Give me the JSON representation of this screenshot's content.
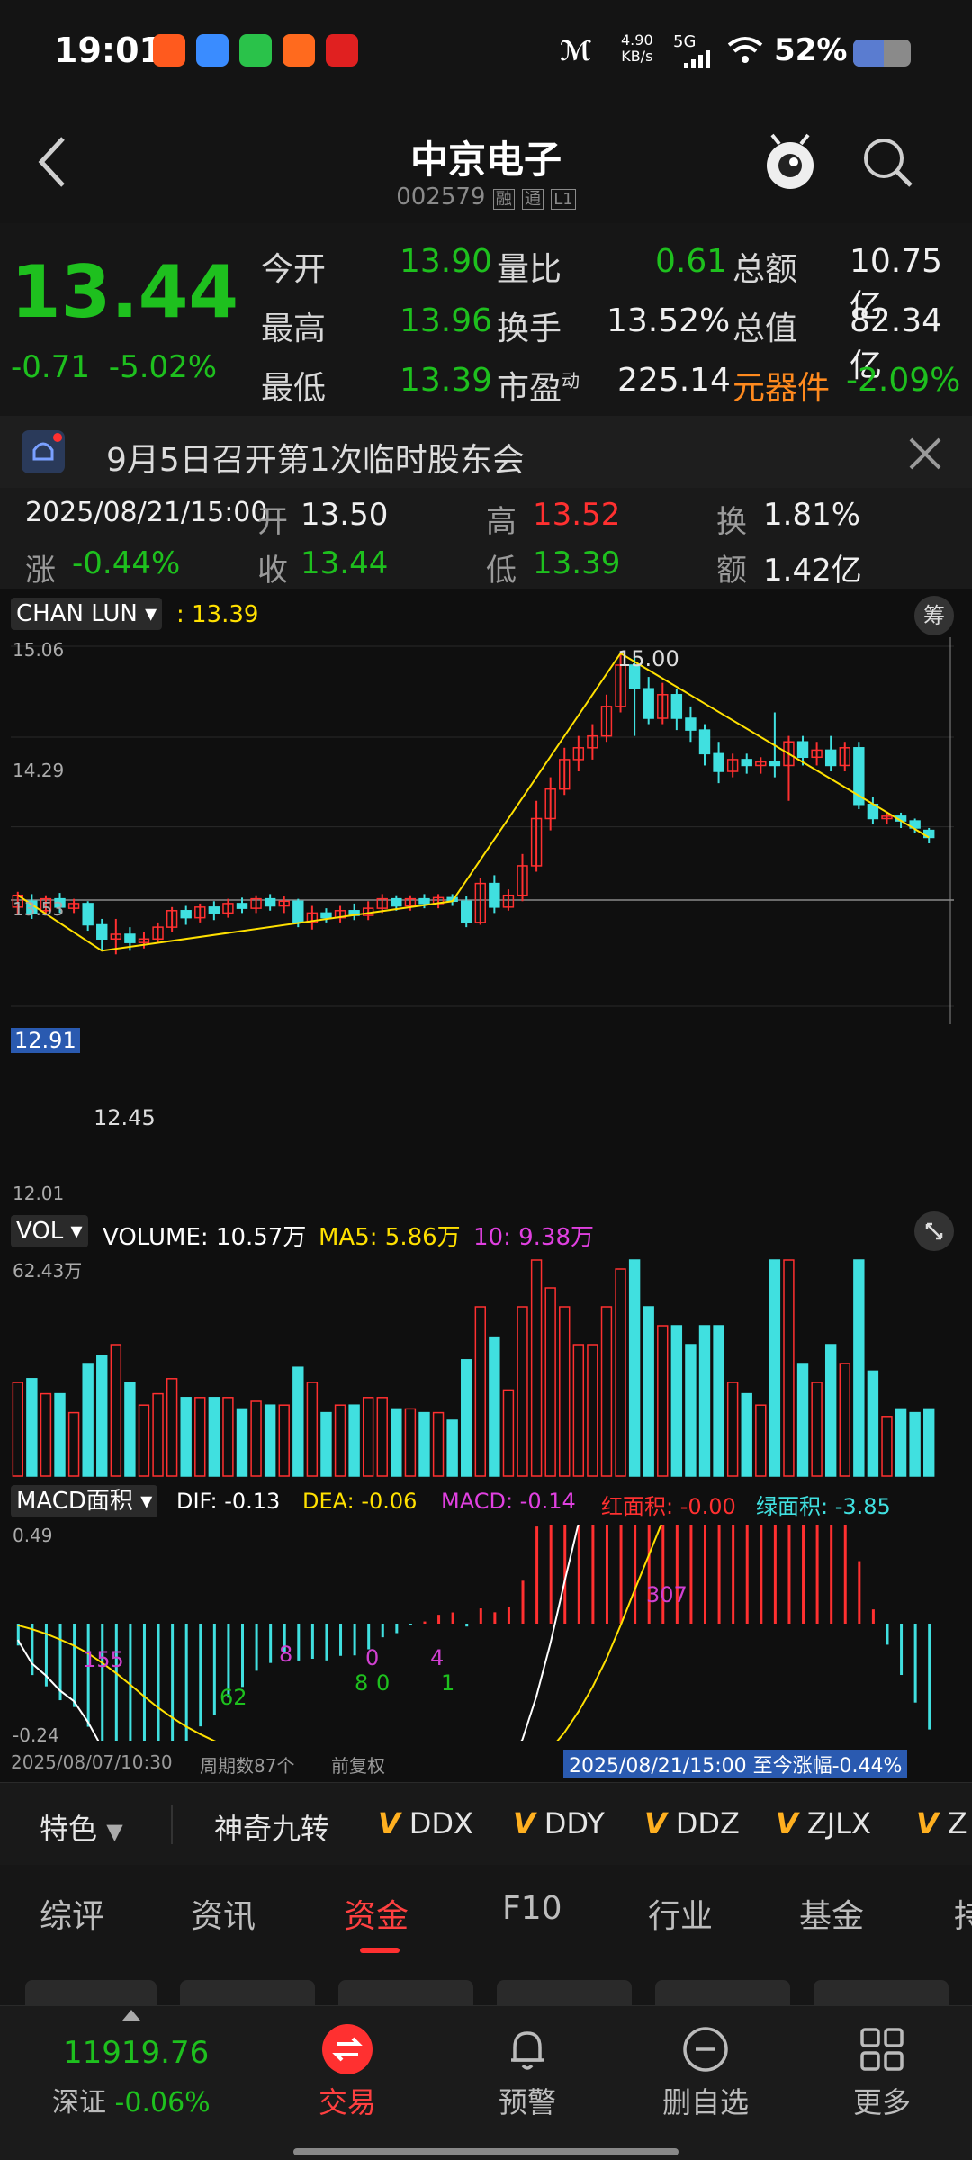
{
  "status": {
    "time": "19:01",
    "net_speed_top": "4.90",
    "net_speed_unit": "KB/s",
    "net_type": "5G",
    "battery": "52%",
    "notif_icons": [
      "notif-app-1-icon",
      "notif-app-2-icon",
      "wechat-icon",
      "taobao-icon",
      "toutiao-icon"
    ]
  },
  "header": {
    "title": "中京电子",
    "code": "002579",
    "badges": [
      "融",
      "通",
      "L1"
    ]
  },
  "quote": {
    "price": "13.44",
    "change": "-0.71",
    "change_pct": "-5.02%",
    "rows": [
      [
        {
          "label": "今开",
          "value": "13.90",
          "color": "green"
        },
        {
          "label": "量比",
          "value": "0.61",
          "color": "green"
        },
        {
          "label": "总额",
          "value": "10.75亿",
          "color": "white"
        }
      ],
      [
        {
          "label": "最高",
          "value": "13.96",
          "color": "green"
        },
        {
          "label": "换手",
          "value": "13.52%",
          "color": "white"
        },
        {
          "label": "总值",
          "value": "82.34亿",
          "color": "white"
        }
      ],
      [
        {
          "label": "最低",
          "value": "13.39",
          "color": "green"
        },
        {
          "label": "市盈",
          "value": "225.14",
          "color": "white"
        },
        {
          "label": "元器件",
          "value": "-2.09%",
          "color": "green"
        }
      ]
    ],
    "pe_sup": "动"
  },
  "notice": {
    "text": "9月5日召开第1次临时股东会"
  },
  "bar_info": {
    "datetime": "2025/08/21/15:00",
    "open_label": "开",
    "open": "13.50",
    "high_label": "高",
    "high": "13.52",
    "turn_label": "换",
    "turn": "1.81%",
    "chg_label": "涨",
    "chg": "-0.44%",
    "close_label": "收",
    "close": "13.44",
    "low_label": "低",
    "low": "13.39",
    "amt_label": "额",
    "amt": "1.42亿"
  },
  "chart": {
    "indicator_name": "CHAN LUN",
    "indicator_value": ": 13.39",
    "chip_label": "筹",
    "y_ticks": [
      "15.06",
      "14.29",
      "13.53",
      "12.01"
    ],
    "cross_price": "12.91",
    "peak_label": "15.00",
    "low_label": "12.45",
    "vol": {
      "name": "VOL",
      "volume": "VOLUME: 10.57万",
      "ma5": "MA5: 5.86万",
      "ma10": "10: 9.38万",
      "max_tick": "62.43万"
    },
    "macd": {
      "name": "MACD面积",
      "dif": "DIF: -0.13",
      "dea": "DEA: -0.06",
      "macd": "MACD: -0.14",
      "red_area": "红面积: -0.00",
      "green_area": "绿面积: -3.85",
      "y_top": "0.49",
      "y_bottom": "-0.24",
      "labels": [
        {
          "text": "155",
          "color": "#d040d0"
        },
        {
          "text": "62",
          "color": "#1ec01e"
        },
        {
          "text": "8",
          "color": "#d040d0"
        },
        {
          "text": "8",
          "color": "#1ec01e"
        },
        {
          "text": "0",
          "color": "#1ec01e"
        },
        {
          "text": "0",
          "color": "#d040d0"
        },
        {
          "text": "4",
          "color": "#d040d0"
        },
        {
          "text": "1",
          "color": "#1ec01e"
        },
        {
          "text": "307",
          "color": "#d040d0"
        }
      ]
    },
    "footer": {
      "start_date": "2025/08/07/10:30",
      "periods": "周期数87个",
      "adjust": "前复权",
      "range_info": "2025/08/21/15:00 至今涨幅-0.44%"
    }
  },
  "chart_data": {
    "type": "candlestick",
    "ylim": [
      12.01,
      15.06
    ],
    "candles": [
      [
        12.85,
        12.95,
        12.78,
        12.98
      ],
      [
        12.9,
        12.8,
        12.75,
        12.96
      ],
      [
        12.82,
        12.92,
        12.78,
        12.95
      ],
      [
        12.92,
        12.85,
        12.8,
        12.97
      ],
      [
        12.84,
        12.88,
        12.8,
        12.92
      ],
      [
        12.88,
        12.7,
        12.65,
        12.9
      ],
      [
        12.7,
        12.58,
        12.48,
        12.75
      ],
      [
        12.58,
        12.62,
        12.45,
        12.75
      ],
      [
        12.62,
        12.55,
        12.48,
        12.68
      ],
      [
        12.55,
        12.58,
        12.5,
        12.64
      ],
      [
        12.58,
        12.68,
        12.55,
        12.72
      ],
      [
        12.68,
        12.82,
        12.64,
        12.85
      ],
      [
        12.82,
        12.76,
        12.7,
        12.86
      ],
      [
        12.76,
        12.85,
        12.72,
        12.88
      ],
      [
        12.85,
        12.8,
        12.74,
        12.9
      ],
      [
        12.8,
        12.88,
        12.76,
        12.92
      ],
      [
        12.88,
        12.84,
        12.8,
        12.93
      ],
      [
        12.84,
        12.92,
        12.8,
        12.95
      ],
      [
        12.92,
        12.86,
        12.82,
        12.96
      ],
      [
        12.86,
        12.9,
        12.8,
        12.94
      ],
      [
        12.9,
        12.72,
        12.68,
        12.92
      ],
      [
        12.72,
        12.8,
        12.66,
        12.86
      ],
      [
        12.8,
        12.76,
        12.72,
        12.84
      ],
      [
        12.76,
        12.82,
        12.72,
        12.86
      ],
      [
        12.82,
        12.78,
        12.74,
        12.88
      ],
      [
        12.78,
        12.84,
        12.74,
        12.9
      ],
      [
        12.84,
        12.92,
        12.8,
        12.96
      ],
      [
        12.92,
        12.86,
        12.82,
        12.95
      ],
      [
        12.86,
        12.92,
        12.82,
        12.95
      ],
      [
        12.92,
        12.88,
        12.84,
        12.96
      ],
      [
        12.88,
        12.93,
        12.84,
        12.96
      ],
      [
        12.93,
        12.9,
        12.86,
        12.96
      ],
      [
        12.9,
        12.72,
        12.68,
        12.94
      ],
      [
        12.72,
        13.05,
        12.7,
        13.1
      ],
      [
        13.05,
        12.85,
        12.8,
        13.12
      ],
      [
        12.85,
        12.95,
        12.82,
        13.0
      ],
      [
        12.95,
        13.2,
        12.9,
        13.3
      ],
      [
        13.2,
        13.6,
        13.15,
        13.75
      ],
      [
        13.6,
        13.85,
        13.5,
        13.95
      ],
      [
        13.85,
        14.1,
        13.8,
        14.2
      ],
      [
        14.1,
        14.2,
        14.0,
        14.3
      ],
      [
        14.2,
        14.3,
        14.1,
        14.4
      ],
      [
        14.3,
        14.55,
        14.25,
        14.65
      ],
      [
        14.55,
        14.9,
        14.5,
        15.0
      ],
      [
        14.9,
        14.7,
        14.3,
        15.0
      ],
      [
        14.7,
        14.45,
        14.4,
        14.8
      ],
      [
        14.45,
        14.65,
        14.4,
        14.75
      ],
      [
        14.65,
        14.45,
        14.35,
        14.7
      ],
      [
        14.45,
        14.35,
        14.25,
        14.55
      ],
      [
        14.35,
        14.15,
        14.05,
        14.4
      ],
      [
        14.15,
        14.0,
        13.9,
        14.25
      ],
      [
        14.0,
        14.1,
        13.95,
        14.15
      ],
      [
        14.1,
        14.05,
        13.98,
        14.15
      ],
      [
        14.05,
        14.08,
        13.98,
        14.12
      ],
      [
        14.08,
        14.05,
        13.95,
        14.5
      ],
      [
        14.05,
        14.25,
        13.75,
        14.3
      ],
      [
        14.25,
        14.12,
        14.05,
        14.3
      ],
      [
        14.12,
        14.18,
        14.05,
        14.25
      ],
      [
        14.18,
        14.05,
        14.0,
        14.3
      ],
      [
        14.05,
        14.2,
        14.0,
        14.25
      ],
      [
        14.2,
        13.72,
        13.68,
        14.25
      ],
      [
        13.72,
        13.6,
        13.55,
        13.78
      ],
      [
        13.6,
        13.62,
        13.55,
        13.66
      ],
      [
        13.62,
        13.58,
        13.52,
        13.65
      ],
      [
        13.58,
        13.52,
        13.48,
        13.6
      ],
      [
        13.5,
        13.44,
        13.39,
        13.52
      ]
    ],
    "volume_max": "62.43万"
  },
  "features": {
    "dropdown": "特色",
    "items": [
      "神奇九转",
      "DDX",
      "DDY",
      "DDZ",
      "ZJLX",
      "Z"
    ]
  },
  "tabs": [
    "综评",
    "资讯",
    "资金",
    "F10",
    "行业",
    "基金",
    "持"
  ],
  "active_tab": 2,
  "bottomnav": {
    "index_value": "11919.76",
    "index_name": "深证",
    "index_change": "-0.06%",
    "items": [
      {
        "label": "交易",
        "icon": "trade-icon"
      },
      {
        "label": "预警",
        "icon": "bell-icon"
      },
      {
        "label": "删自选",
        "icon": "minus-circle-icon"
      },
      {
        "label": "更多",
        "icon": "grid-icon"
      }
    ]
  }
}
